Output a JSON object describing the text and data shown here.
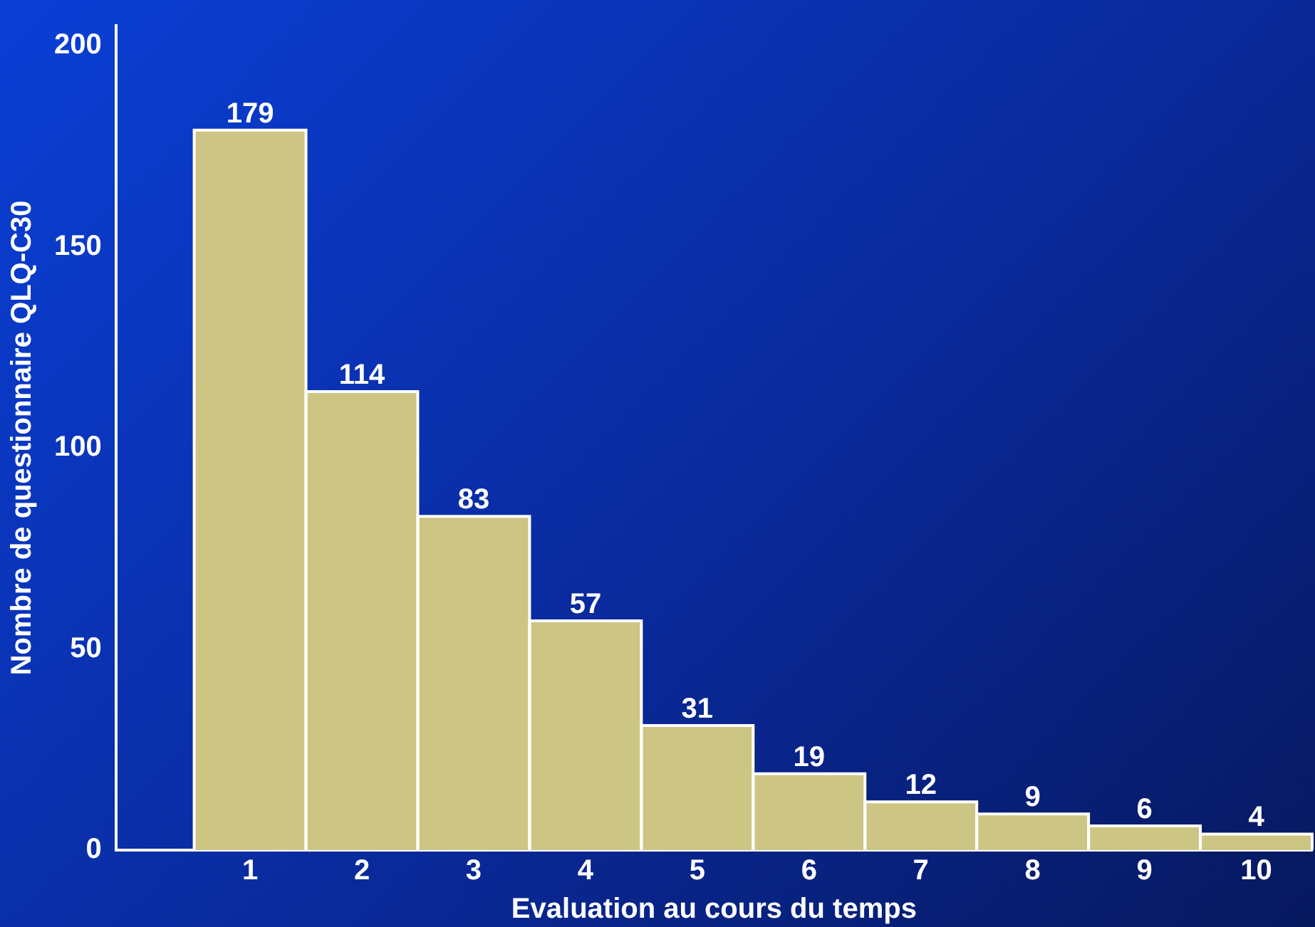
{
  "chart_data": {
    "type": "bar",
    "xlabel": "Evaluation au cours du temps",
    "ylabel": "Nombre de questionnaire QLQ-C30",
    "x": [
      1,
      2,
      3,
      4,
      5,
      6,
      7,
      8,
      9,
      10
    ],
    "values": [
      179,
      114,
      83,
      57,
      31,
      19,
      12,
      9,
      6,
      4
    ],
    "color": "#cdc584",
    "xlim": [
      -0.2,
      10.5
    ],
    "xticks": [
      1,
      2,
      3,
      4,
      5,
      6,
      7,
      8,
      9,
      10
    ],
    "ylim": [
      0,
      205
    ],
    "yticks": [
      0,
      50,
      100,
      150,
      200
    ],
    "grid": false,
    "legend": false,
    "data_labels": true
  }
}
